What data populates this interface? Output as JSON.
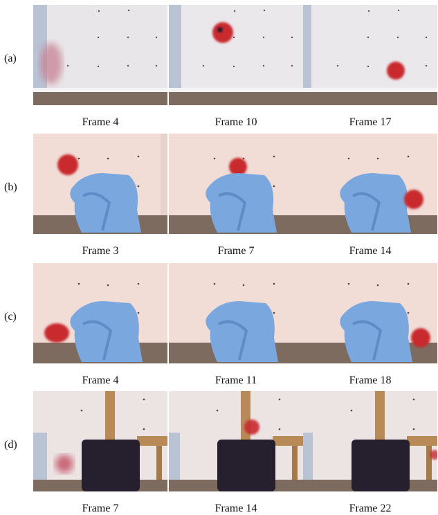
{
  "rows": [
    {
      "label": "(a)",
      "scene": "wall",
      "frames": [
        {
          "caption": "Frame 4",
          "ball": "motion-blurred ball entering at left edge"
        },
        {
          "caption": "Frame 10",
          "ball": "ball in flight near top"
        },
        {
          "caption": "Frame 17",
          "ball": "ball descending at right"
        }
      ]
    },
    {
      "label": "(b)",
      "scene": "blue-cloth",
      "frames": [
        {
          "caption": "Frame 3",
          "ball": "ball at upper left"
        },
        {
          "caption": "Frame 7",
          "ball": "ball partly occluded behind cloth"
        },
        {
          "caption": "Frame 14",
          "ball": "ball emerging at right"
        }
      ]
    },
    {
      "label": "(c)",
      "scene": "blue-cloth",
      "frames": [
        {
          "caption": "Frame 4",
          "ball": "ball on floor at left"
        },
        {
          "caption": "Frame 11",
          "ball": "ball hidden behind cloth"
        },
        {
          "caption": "Frame 18",
          "ball": "ball on floor at right"
        }
      ]
    },
    {
      "label": "(d)",
      "scene": "suitcase",
      "frames": [
        {
          "caption": "Frame 7",
          "ball": "blurred ball at lower left"
        },
        {
          "caption": "Frame 14",
          "ball": "ball partly visible behind suitcase"
        },
        {
          "caption": "Frame 22",
          "ball": "ball barely visible at right edge"
        }
      ]
    }
  ],
  "colors": {
    "wall_a": "#e9e6ea",
    "wall_b": "#f1dcd6",
    "carpet": "#7d6b60",
    "cloth": "#7aa7de",
    "ball": "#c82a2e",
    "suitcase": "#26202e",
    "wood": "#b88a57"
  }
}
